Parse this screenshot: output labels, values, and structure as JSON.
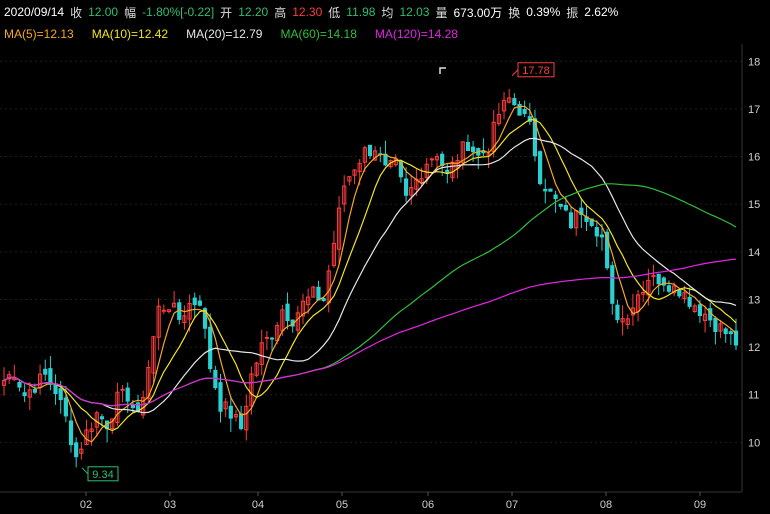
{
  "header": {
    "date": "2020/09/14",
    "close_label": "收",
    "close_value": "12.00",
    "change_label": "幅",
    "change_value": "-1.80%[-0.22]",
    "open_label": "开",
    "open_value": "12.20",
    "high_label": "高",
    "high_value": "12.30",
    "low_label": "低",
    "low_value": "11.98",
    "avg_label": "均",
    "avg_value": "12.03",
    "volume_label": "量",
    "volume_value": "673.00万",
    "turnover_label": "换",
    "turnover_value": "0.39%",
    "amplitude_label": "振",
    "amplitude_value": "2.62%"
  },
  "ma_legend": [
    {
      "text": "MA(5)=12.13",
      "color": "#f5a623"
    },
    {
      "text": "MA(10)=12.42",
      "color": "#f2e51d"
    },
    {
      "text": "MA(20)=12.79",
      "color": "#e6e6e6"
    },
    {
      "text": "MA(60)=14.18",
      "color": "#2fbf3a"
    },
    {
      "text": "MA(120)=14.28",
      "color": "#e026e0"
    }
  ],
  "chart_data": {
    "type": "candlestick",
    "x_months": [
      "02",
      "03",
      "04",
      "05",
      "06",
      "07",
      "08",
      "09"
    ],
    "y_ticks": [
      10,
      11,
      12,
      13,
      14,
      15,
      16,
      17,
      18
    ],
    "ylim": [
      9.0,
      18.3
    ],
    "annotations": {
      "max": "17.78",
      "min": "9.34"
    },
    "up_color": "#ff3b3b",
    "down_color": "#2ad0d0",
    "close_path": [
      11.3,
      11.5,
      11.0,
      11.2,
      11.4,
      11.1,
      10.5,
      9.7,
      10.2,
      10.6,
      10.4,
      10.9,
      11.0,
      10.5,
      11.6,
      12.8,
      12.9,
      12.6,
      12.9,
      13.0,
      11.6,
      10.8,
      10.6,
      10.3,
      11.4,
      12.0,
      12.3,
      12.8,
      12.6,
      12.9,
      13.1,
      13.0,
      14.2,
      15.4,
      15.8,
      16.1,
      16.2,
      15.7,
      15.8,
      15.1,
      15.5,
      15.9,
      16.1,
      15.6,
      16.0,
      16.3,
      16.0,
      16.2,
      16.9,
      17.2,
      17.0,
      16.6,
      15.6,
      15.2,
      14.9,
      14.6,
      14.9,
      14.7,
      14.3,
      12.8,
      12.6,
      12.9,
      13.3,
      13.6,
      13.2,
      13.4,
      13.1,
      12.9,
      12.7,
      12.5,
      12.3,
      12.1
    ]
  }
}
